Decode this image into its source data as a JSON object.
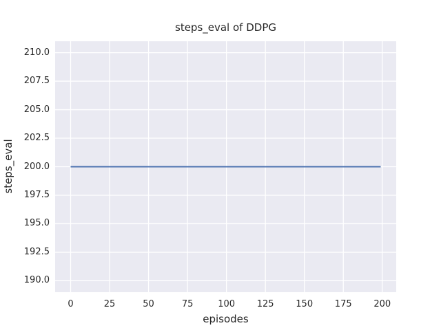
{
  "chart_data": {
    "type": "line",
    "title": "steps_eval of DDPG",
    "xlabel": "episodes",
    "ylabel": "steps_eval",
    "xlim": [
      -9.95,
      208.95
    ],
    "ylim": [
      189,
      211
    ],
    "xticks": [
      0,
      25,
      50,
      75,
      100,
      125,
      150,
      175,
      200
    ],
    "ytick_labels": [
      "190.0",
      "192.5",
      "195.0",
      "197.5",
      "200.0",
      "202.5",
      "205.0",
      "207.5",
      "210.0"
    ],
    "grid": true,
    "legend_position": "none",
    "plot_bg_color": "#eaeaf2",
    "grid_color": "#ffffff",
    "text_color": "#262626",
    "series": [
      {
        "name": "DDPG",
        "color": "#4c72b0",
        "x": [
          0,
          199
        ],
        "y": [
          200,
          200
        ]
      }
    ]
  }
}
